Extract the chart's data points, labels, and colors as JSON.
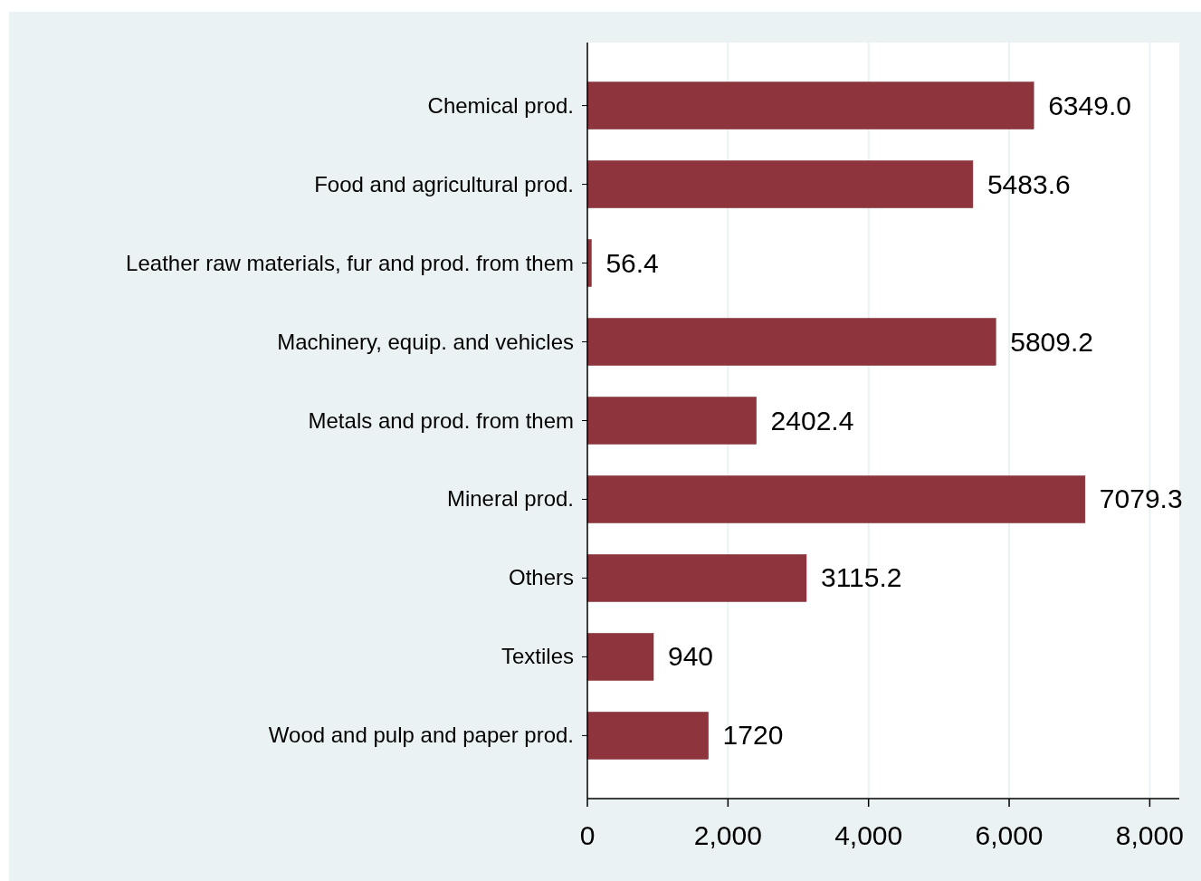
{
  "chart_data": {
    "type": "bar",
    "orientation": "horizontal",
    "categories": [
      "Chemical prod.",
      "Food and agricultural prod.",
      "Leather raw materials, fur and prod. from them",
      "Machinery, equip. and vehicles",
      "Metals and prod. from them",
      "Mineral prod.",
      "Others",
      "Textiles",
      "Wood and pulp and paper prod."
    ],
    "values": [
      6349.0,
      5483.6,
      56.4,
      5809.2,
      2402.4,
      7079.3,
      3115.2,
      940,
      1720
    ],
    "value_labels": [
      "6349.0",
      "5483.6",
      "56.4",
      "5809.2",
      "2402.4",
      "7079.3",
      "3115.2",
      "940",
      "1720"
    ],
    "color": "#8e343c",
    "xlim": [
      0,
      8420
    ],
    "xticks": [
      0,
      {
        "value": 2000,
        "label": "2,000"
      },
      {
        "value": 4000,
        "label": "4,000"
      },
      {
        "value": 6000,
        "label": "6,000"
      },
      {
        "value": 8000,
        "label": "8,000"
      }
    ],
    "grid": "x"
  }
}
